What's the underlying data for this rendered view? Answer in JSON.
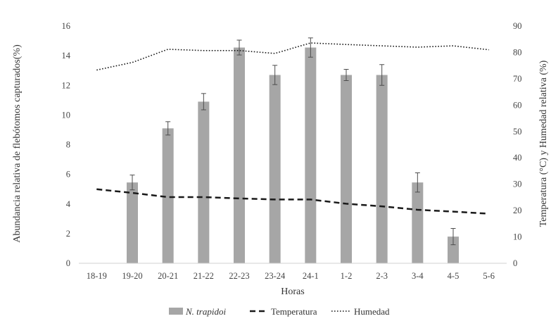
{
  "chart_data": {
    "type": "bar",
    "categories": [
      "18-19",
      "19-20",
      "20-21",
      "21-22",
      "22-23",
      "23-24",
      "24-1",
      "1-2",
      "2-3",
      "3-4",
      "4-5",
      "5-6"
    ],
    "xlabel": "Horas",
    "ylabel": "Abundancia relativa de flebótomos capturados(%)",
    "y2label": "Temperatura (°C) y Humedad relativa (%)",
    "ylim": [
      0,
      16
    ],
    "yticks": [
      0,
      2,
      4,
      6,
      8,
      10,
      12,
      14,
      16
    ],
    "y2lim": [
      0,
      90
    ],
    "y2ticks": [
      0,
      10,
      20,
      30,
      40,
      50,
      60,
      70,
      80,
      90
    ],
    "grid": false,
    "legend_position": "bottom",
    "series": [
      {
        "name": "N. trapidoi",
        "kind": "bar",
        "axis": "left",
        "color": "#a6a6a6",
        "values": [
          null,
          5.45,
          9.1,
          10.9,
          14.55,
          12.7,
          14.55,
          12.7,
          12.7,
          5.45,
          1.8,
          null
        ],
        "error": [
          null,
          0.5,
          0.45,
          0.55,
          0.5,
          0.65,
          0.65,
          0.38,
          0.7,
          0.65,
          0.55,
          null
        ]
      },
      {
        "name": "Temperatura",
        "kind": "line",
        "style": "dashed",
        "axis": "right",
        "color": "#1a1a1a",
        "values": [
          28.1,
          26.7,
          25.1,
          25.1,
          24.6,
          24.2,
          24.2,
          22.6,
          21.6,
          20.3,
          19.6,
          18.8
        ]
      },
      {
        "name": "Humedad",
        "kind": "line",
        "style": "dotted",
        "axis": "right",
        "color": "#1a1a1a",
        "values": [
          73.3,
          76.2,
          81.2,
          80.7,
          80.7,
          79.6,
          83.6,
          83.0,
          82.5,
          82.0,
          82.5,
          81.0
        ]
      }
    ]
  }
}
